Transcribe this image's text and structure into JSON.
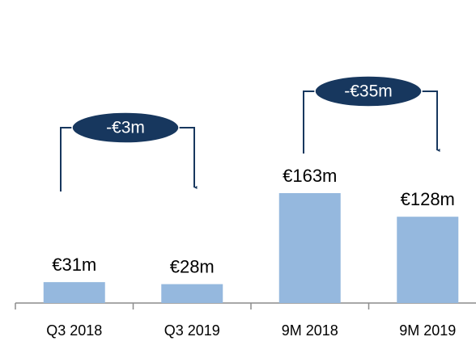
{
  "chart_data": {
    "type": "bar",
    "categories": [
      "Q3 2018",
      "Q3 2019",
      "9M 2018",
      "9M 2019"
    ],
    "values": [
      31,
      28,
      163,
      128
    ],
    "value_labels": [
      "€31m",
      "€28m",
      "€163m",
      "€128m"
    ],
    "color": "#95b8de",
    "annotations": [
      "-€3m",
      "-€35m"
    ],
    "annotation_color": "#17375e"
  }
}
